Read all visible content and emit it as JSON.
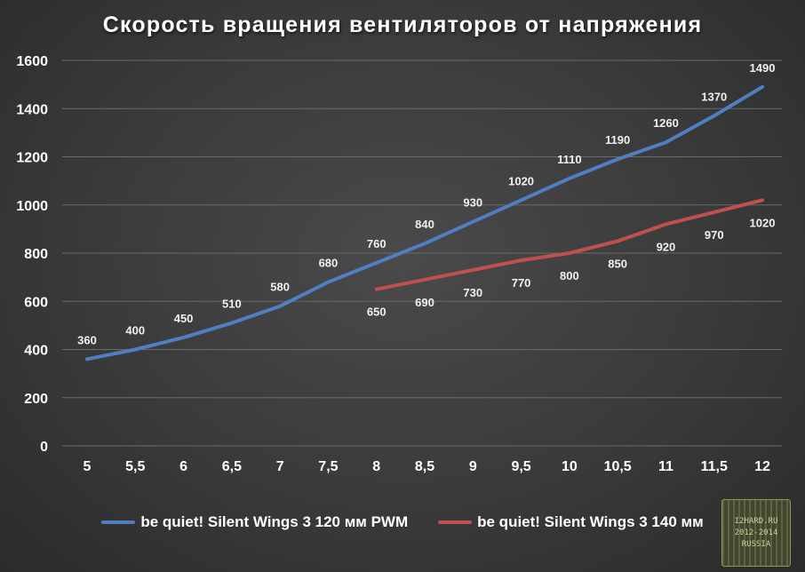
{
  "chart_data": {
    "type": "line",
    "title": "Скорость вращения вентиляторов от напряжения",
    "xlabel": "",
    "ylabel": "",
    "categories": [
      "5",
      "5,5",
      "6",
      "6,5",
      "7",
      "7,5",
      "8",
      "8,5",
      "9",
      "9,5",
      "10",
      "10,5",
      "11",
      "11,5",
      "12"
    ],
    "y_ticks": [
      "0",
      "200",
      "400",
      "600",
      "800",
      "1000",
      "1200",
      "1400",
      "1600"
    ],
    "ylim": [
      0,
      1600
    ],
    "grid": true,
    "legend_position": "bottom",
    "series": [
      {
        "name": "be quiet! Silent Wings 3 120 мм PWM",
        "color": "#4f7fc1",
        "values": [
          360,
          400,
          450,
          510,
          580,
          680,
          760,
          840,
          930,
          1020,
          1110,
          1190,
          1260,
          1370,
          1490
        ],
        "labels": [
          "360",
          "400",
          "450",
          "510",
          "580",
          "680",
          "760",
          "840",
          "930",
          "1020",
          "1110",
          "1190",
          "1260",
          "1370",
          "1490"
        ]
      },
      {
        "name": "be quiet! Silent Wings 3 140 мм",
        "color": "#c0504d",
        "values": [
          null,
          null,
          null,
          null,
          null,
          null,
          650,
          690,
          730,
          770,
          800,
          850,
          920,
          970,
          1020
        ],
        "labels": [
          "",
          "",
          "",
          "",
          "",
          "",
          "650",
          "690",
          "730",
          "770",
          "800",
          "850",
          "920",
          "970",
          "1020"
        ]
      }
    ]
  },
  "watermark": {
    "lines": [
      "I2HARD.RU",
      "2012-2014",
      "RUSSIA"
    ]
  }
}
